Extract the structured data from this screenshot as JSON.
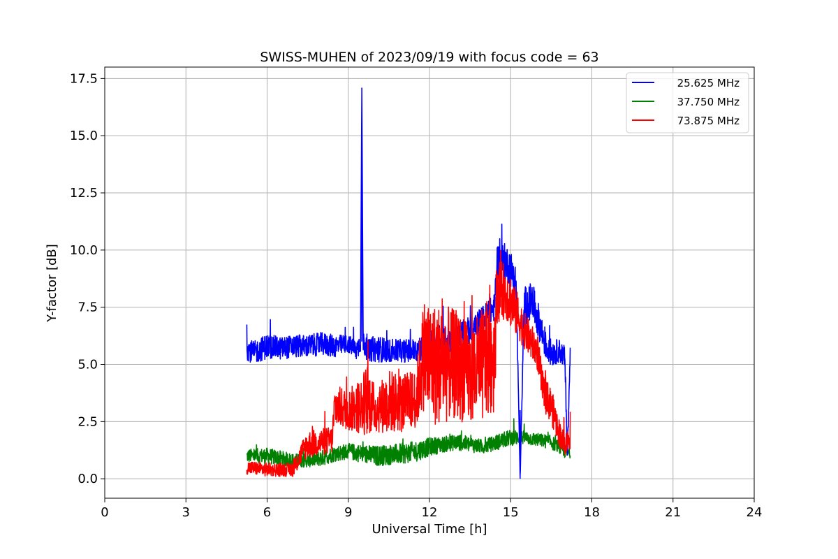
{
  "chart_data": {
    "type": "line",
    "title": "SWISS-MUHEN of 2023/09/19 with focus code = 63",
    "xlabel": "Universal Time [h]",
    "ylabel": "Y-factor [dB]",
    "xlim": [
      0,
      24
    ],
    "ylim": [
      -0.85,
      18.0
    ],
    "x_ticks": [
      0,
      3,
      6,
      9,
      12,
      15,
      18,
      21,
      24
    ],
    "x_tick_labels": [
      "0",
      "3",
      "6",
      "9",
      "12",
      "15",
      "18",
      "21",
      "24"
    ],
    "y_ticks": [
      0.0,
      2.5,
      5.0,
      7.5,
      10.0,
      12.5,
      15.0,
      17.5
    ],
    "y_tick_labels": [
      "0.0",
      "2.5",
      "5.0",
      "7.5",
      "10.0",
      "12.5",
      "15.0",
      "17.5"
    ],
    "grid": true,
    "legend_position": "top-right",
    "series": [
      {
        "name": "25.625 MHz",
        "color": "#0000ff",
        "x": [
          5.25,
          5.5,
          6.0,
          6.5,
          7.0,
          7.5,
          8.0,
          8.5,
          9.0,
          9.3,
          9.45,
          9.5,
          9.55,
          9.7,
          10.0,
          10.5,
          11.0,
          11.5,
          12.0,
          12.5,
          13.0,
          13.5,
          14.0,
          14.4,
          14.5,
          14.8,
          15.0,
          15.2,
          15.3,
          15.35,
          15.5,
          15.8,
          16.0,
          16.3,
          16.5,
          16.8,
          17.0,
          17.1,
          17.2
        ],
        "y": [
          5.7,
          5.5,
          5.8,
          5.7,
          5.8,
          5.8,
          5.9,
          5.8,
          5.9,
          5.6,
          6.0,
          17.1,
          6.0,
          5.6,
          5.7,
          5.6,
          5.6,
          5.6,
          5.9,
          6.0,
          6.2,
          6.5,
          7.0,
          7.5,
          9.5,
          9.5,
          9.2,
          8.5,
          3.0,
          0.0,
          7.5,
          7.8,
          7.0,
          5.8,
          5.5,
          5.6,
          5.3,
          1.0,
          5.5
        ],
        "spread": [
          0.5,
          0.5,
          0.55,
          0.5,
          0.5,
          0.5,
          0.5,
          0.5,
          0.4,
          0.45,
          0.5,
          0.0,
          0.5,
          0.45,
          0.6,
          0.5,
          0.5,
          0.55,
          0.6,
          0.6,
          0.6,
          0.6,
          0.6,
          0.6,
          0.8,
          0.8,
          0.8,
          0.8,
          0.3,
          0.0,
          0.9,
          0.8,
          0.8,
          0.6,
          0.6,
          0.5,
          0.5,
          0.3,
          0.3
        ]
      },
      {
        "name": "37.750 MHz",
        "color": "#008000",
        "x": [
          5.25,
          6.0,
          7.0,
          7.5,
          8.0,
          8.5,
          9.0,
          10.0,
          11.0,
          11.5,
          12.0,
          12.5,
          13.0,
          13.5,
          14.0,
          14.5,
          15.0,
          15.5,
          16.0,
          16.5,
          17.0,
          17.2
        ],
        "y": [
          1.0,
          1.0,
          0.8,
          0.8,
          0.9,
          1.1,
          1.2,
          1.0,
          1.1,
          1.2,
          1.4,
          1.5,
          1.6,
          1.5,
          1.4,
          1.6,
          1.8,
          1.8,
          1.7,
          1.6,
          1.2,
          1.1
        ],
        "spread": [
          0.3,
          0.35,
          0.3,
          0.3,
          0.35,
          0.35,
          0.35,
          0.45,
          0.45,
          0.45,
          0.4,
          0.35,
          0.35,
          0.35,
          0.3,
          0.35,
          0.35,
          0.3,
          0.3,
          0.3,
          0.3,
          0.2
        ]
      },
      {
        "name": "73.875 MHz",
        "color": "#ff0000",
        "x": [
          5.25,
          6.0,
          7.0,
          7.3,
          7.5,
          8.0,
          8.4,
          8.5,
          9.0,
          9.5,
          9.7,
          10.0,
          10.5,
          11.0,
          11.5,
          11.8,
          12.0,
          12.5,
          13.0,
          13.5,
          14.0,
          14.4,
          14.5,
          14.8,
          15.0,
          15.5,
          16.0,
          16.2,
          16.5,
          16.8,
          17.0,
          17.2
        ],
        "y": [
          0.5,
          0.4,
          0.4,
          1.2,
          1.5,
          1.6,
          1.7,
          3.2,
          3.0,
          3.2,
          3.5,
          3.0,
          3.4,
          3.3,
          3.5,
          5.5,
          5.0,
          5.0,
          5.0,
          4.5,
          5.0,
          5.5,
          8.2,
          8.2,
          7.8,
          6.5,
          5.5,
          3.8,
          3.2,
          2.0,
          1.5,
          1.8
        ],
        "spread": [
          0.3,
          0.3,
          0.3,
          0.5,
          0.6,
          0.6,
          0.6,
          0.9,
          0.9,
          1.3,
          1.6,
          1.0,
          1.4,
          1.3,
          1.3,
          2.5,
          2.8,
          2.6,
          2.4,
          2.2,
          2.6,
          2.6,
          1.4,
          1.2,
          1.2,
          0.8,
          0.8,
          0.8,
          0.8,
          0.6,
          0.5,
          0.5
        ]
      }
    ]
  }
}
